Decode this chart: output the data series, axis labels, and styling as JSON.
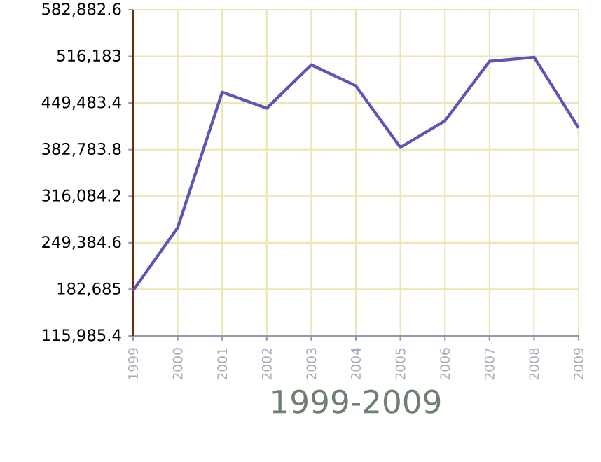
{
  "chart_data": {
    "type": "line",
    "xlabel": "1999-2009",
    "categories": [
      "1999",
      "2000",
      "2001",
      "2002",
      "2003",
      "2004",
      "2005",
      "2006",
      "2007",
      "2008",
      "2009"
    ],
    "series": [
      {
        "color": "#5f55b5",
        "values": [
          181000,
          271000,
          465000,
          442000,
          504000,
          474000,
          386000,
          424000,
          509000,
          515000,
          414000
        ]
      }
    ],
    "ylim": [
      115985.4,
      582882.6
    ],
    "yticks": [
      {
        "value": 115985.4,
        "label": "115,985.4"
      },
      {
        "value": 182685,
        "label": "182,685"
      },
      {
        "value": 249384.6,
        "label": "249,384.6"
      },
      {
        "value": 316084.2,
        "label": "316,084.2"
      },
      {
        "value": 382783.8,
        "label": "382,783.8"
      },
      {
        "value": 449483.4,
        "label": "449,483.4"
      },
      {
        "value": 516183,
        "label": "516,183"
      },
      {
        "value": 582882.6,
        "label": "582,882.6"
      }
    ],
    "grid": true,
    "marker": "none",
    "line_style": "solid"
  }
}
